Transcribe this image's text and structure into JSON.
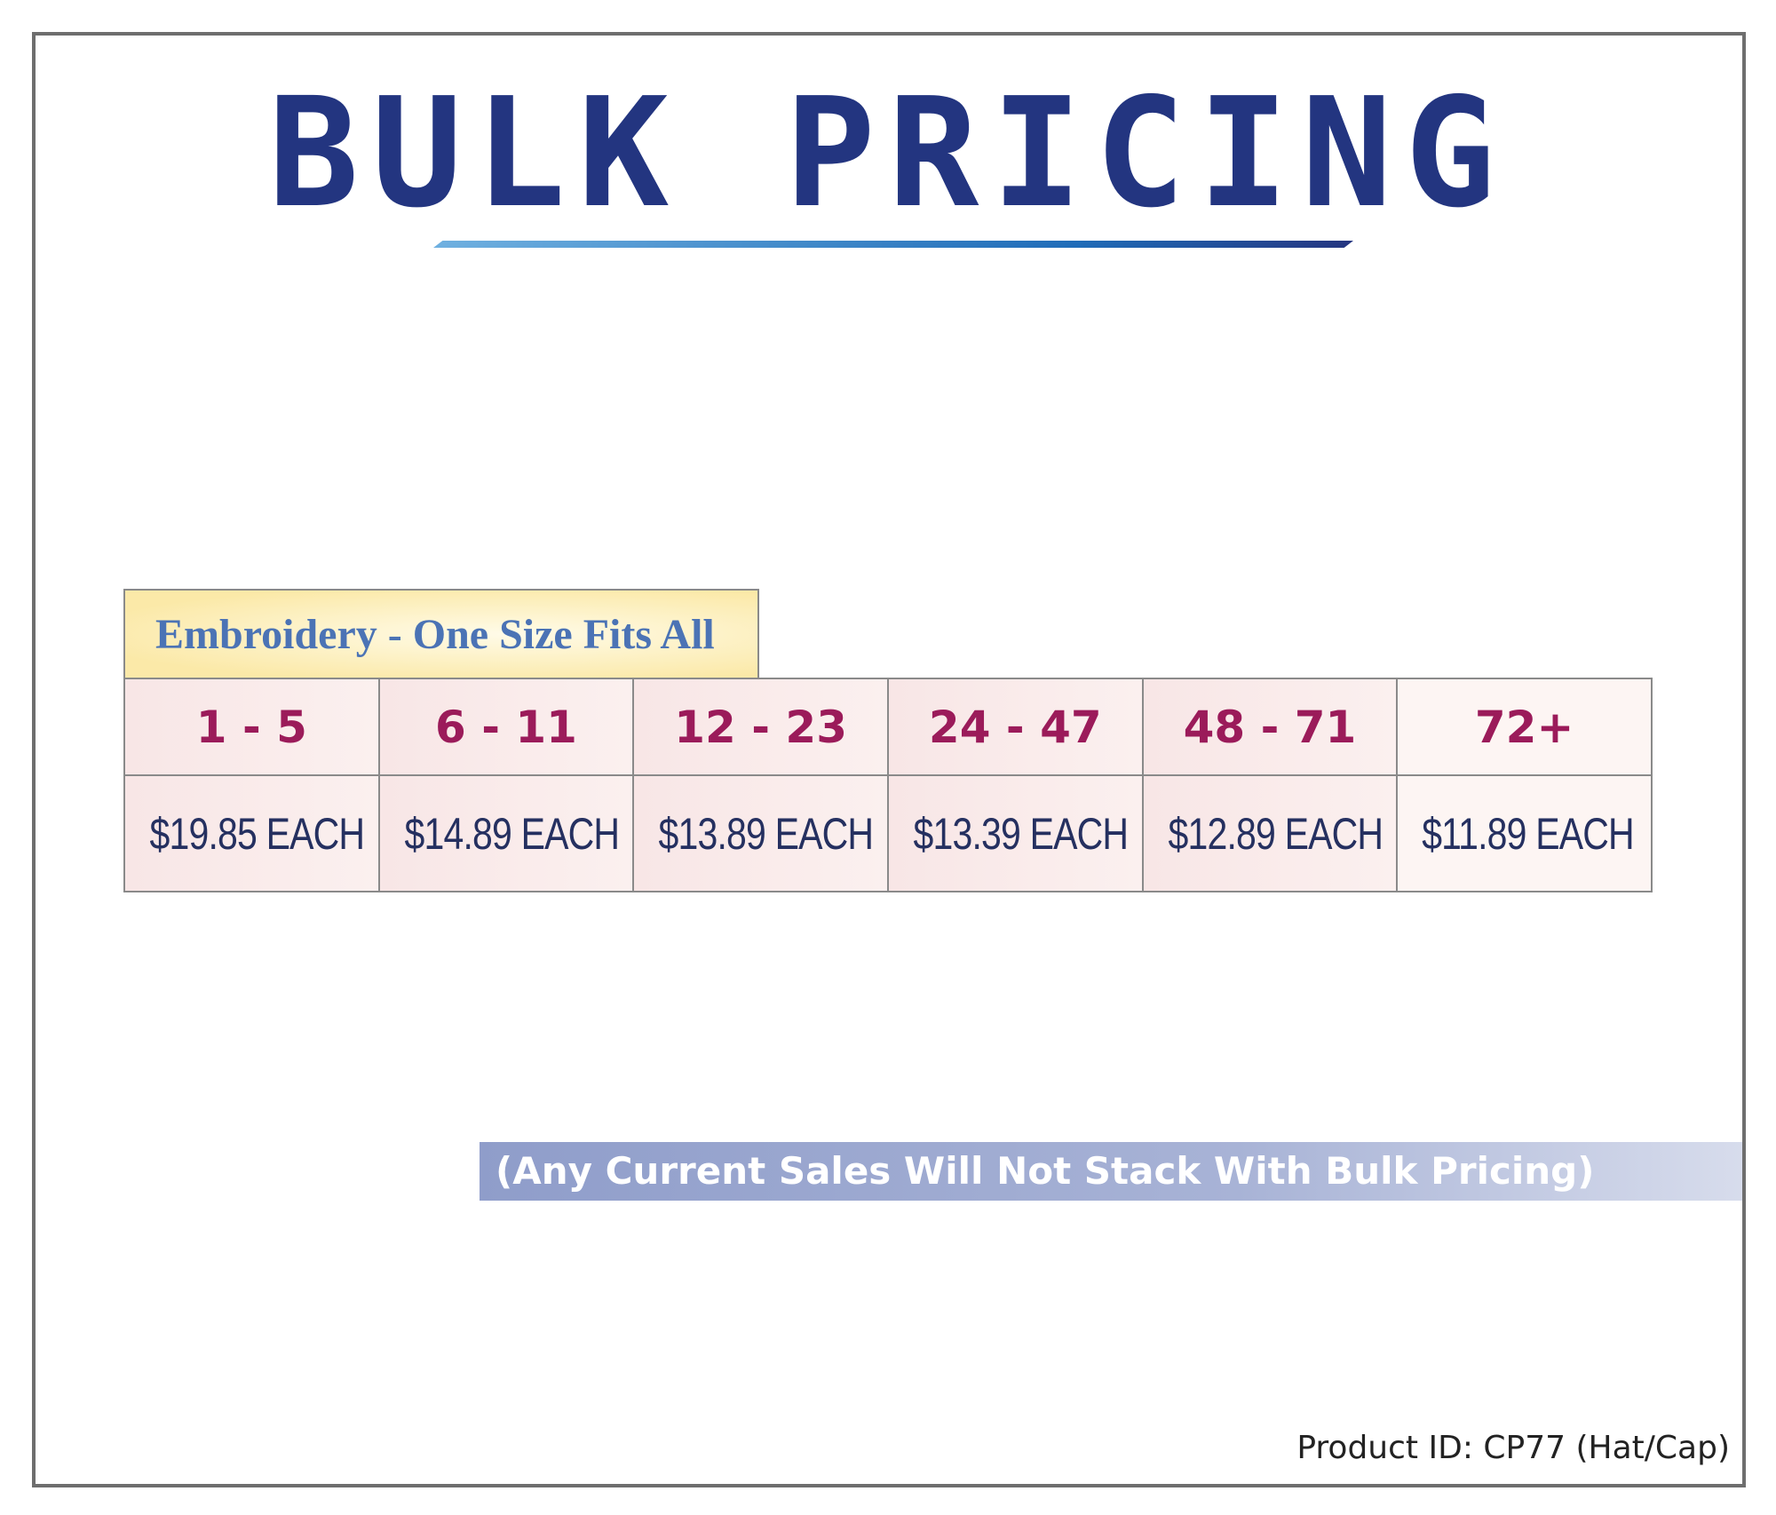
{
  "title": "BULK PRICING",
  "table": {
    "header": "Embroidery - One Size Fits All",
    "quantities": [
      "1 - 5",
      "6 - 11",
      "12 - 23",
      "24 - 47",
      "48 - 71",
      "72+"
    ],
    "prices": [
      "$19.85 EACH",
      "$14.89 EACH",
      "$13.89 EACH",
      "$13.39 EACH",
      "$12.89 EACH",
      "$11.89 EACH"
    ]
  },
  "note": "(Any Current Sales Will Not Stack With Bulk Pricing)",
  "product_id": "Product ID: CP77 (Hat/Cap)"
}
